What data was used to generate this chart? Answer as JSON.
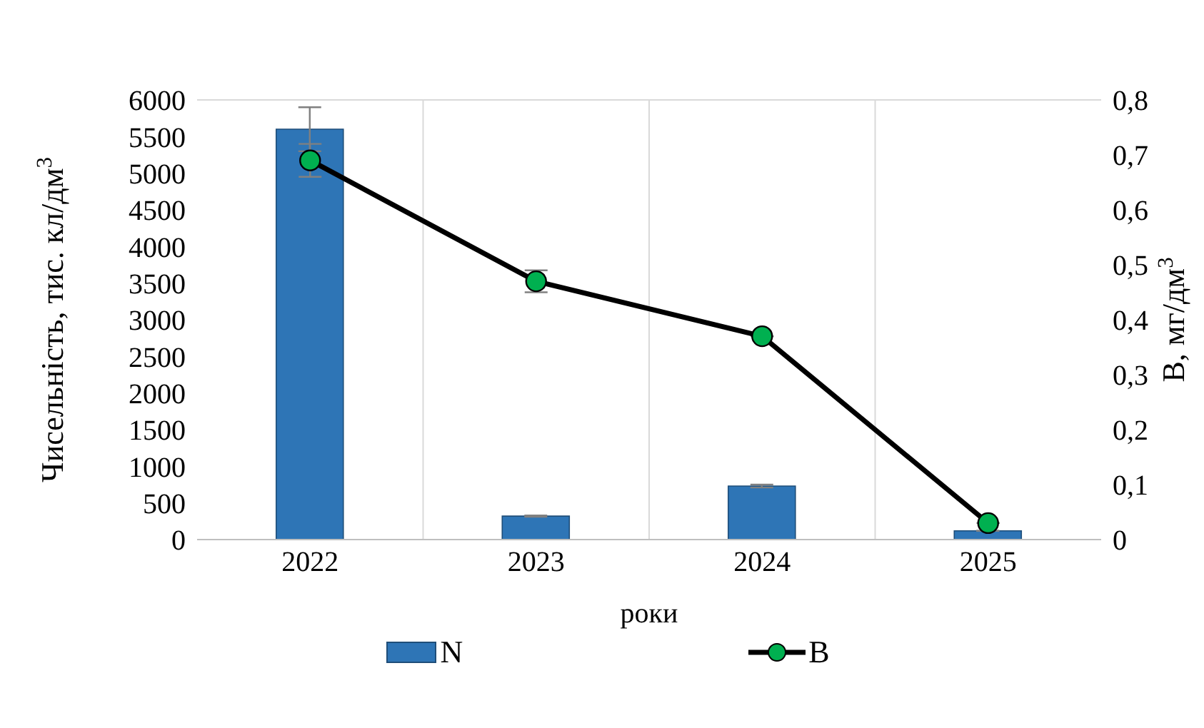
{
  "chart_data": {
    "type": "bar",
    "categories": [
      "2022",
      "2023",
      "2024",
      "2025"
    ],
    "xlabel": "роки",
    "ylabel": "Чисельність,  тис. кл/дм$^{3}$",
    "y2label": "В, мг/дм$^{3}$",
    "series": [
      {
        "name": "N",
        "color": "#2e75b6",
        "values": [
          5600,
          320,
          730,
          120
        ],
        "errors": [
          300,
          10,
          20,
          null
        ]
      },
      {
        "name": "В",
        "type": "line",
        "axis": "y2",
        "color": "#000000",
        "values": [
          0.69,
          0.47,
          0.37,
          0.03
        ],
        "errors": [
          0.03,
          0.02,
          null,
          null
        ]
      }
    ],
    "ylim": [
      0,
      6000
    ],
    "yticks": [
      0,
      500,
      1000,
      1500,
      2000,
      2500,
      3000,
      3500,
      4000,
      4500,
      5000,
      5500,
      6000
    ],
    "y2lim": [
      0,
      0.8
    ],
    "y2ticks": [
      0,
      {
        "value": 0.1,
        "label": "0,1"
      },
      {
        "value": 0.2,
        "label": "0,2"
      },
      {
        "value": 0.3,
        "label": "0,3"
      },
      {
        "value": 0.4,
        "label": "0,4"
      },
      {
        "value": 0.5,
        "label": "0,5"
      },
      {
        "value": 0.6,
        "label": "0,6"
      },
      {
        "value": 0.7,
        "label": "0,7"
      },
      {
        "value": 0.8,
        "label": "0,8"
      }
    ],
    "grid": true,
    "legend": "bottom",
    "marker": "circle",
    "line_style": "solid"
  }
}
